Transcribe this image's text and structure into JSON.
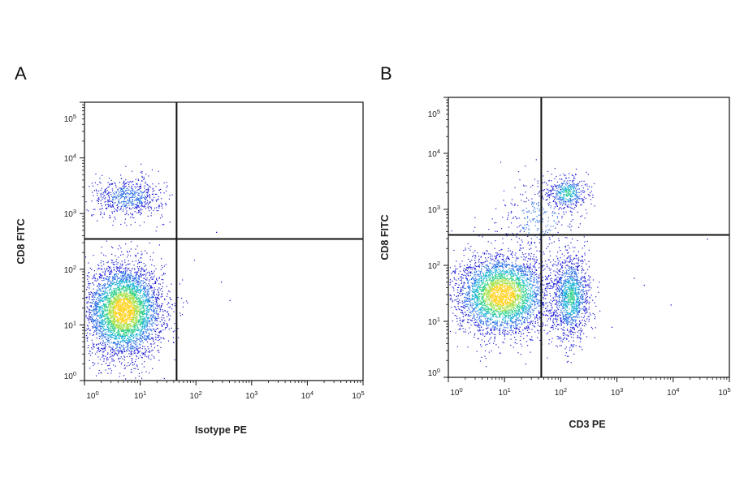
{
  "figure": {
    "panels": [
      {
        "letter": "A"
      },
      {
        "letter": "B"
      }
    ]
  },
  "chart_data": [
    {
      "type": "scatter",
      "panel": "A",
      "xlabel": "Isotype PE",
      "ylabel": "CD8 FITC",
      "xscale": "log",
      "yscale": "log",
      "xlim": [
        1,
        100000
      ],
      "ylim": [
        1,
        100000
      ],
      "x_tick_labels": [
        "10^0",
        "10^1",
        "10^2",
        "10^3",
        "10^4",
        "10^5"
      ],
      "y_tick_labels": [
        "10^0",
        "10^1",
        "10^2",
        "10^3",
        "10^4",
        "10^5"
      ],
      "quadrant_gate": {
        "x": 45,
        "y": 350
      },
      "density_colormap": [
        "#1a1ad6",
        "#2a6ee6",
        "#1fb3d6",
        "#2fd08a",
        "#a8e04a",
        "#ffd21f"
      ],
      "series": [
        {
          "gx": 5,
          "gy": 18,
          "sx": 0.35,
          "sy": 0.42,
          "count": 4200,
          "peak": "high"
        },
        {
          "gx": 6,
          "gy": 2000,
          "sx": 0.32,
          "sy": 0.18,
          "count": 650,
          "peak": "low"
        }
      ],
      "outliers": [
        [
          230,
          470
        ],
        [
          400,
          28
        ],
        [
          280,
          60
        ],
        [
          9,
          60
        ]
      ]
    },
    {
      "type": "scatter",
      "panel": "B",
      "xlabel": "CD3 PE",
      "ylabel": "CD8 FITC",
      "xscale": "log",
      "yscale": "log",
      "xlim": [
        1,
        100000
      ],
      "ylim": [
        1,
        100000
      ],
      "x_tick_labels": [
        "10^0",
        "10^1",
        "10^2",
        "10^3",
        "10^4",
        "10^5"
      ],
      "y_tick_labels": [
        "10^0",
        "10^1",
        "10^2",
        "10^3",
        "10^4",
        "10^5"
      ],
      "quadrant_gate": {
        "x": 45,
        "y": 350
      },
      "density_colormap": [
        "#1a1ad6",
        "#2a6ee6",
        "#1fb3d6",
        "#2fd08a",
        "#a8e04a",
        "#ffd21f"
      ],
      "series": [
        {
          "gx": 9,
          "gy": 30,
          "sx": 0.42,
          "sy": 0.36,
          "count": 3600,
          "peak": "high"
        },
        {
          "gx": 150,
          "gy": 28,
          "sx": 0.17,
          "sy": 0.38,
          "count": 1300,
          "peak": "mid"
        },
        {
          "gx": 130,
          "gy": 2000,
          "sx": 0.17,
          "sy": 0.15,
          "count": 420,
          "peak": "mid"
        },
        {
          "gx": 40,
          "gy": 700,
          "sx": 0.35,
          "sy": 0.35,
          "count": 300,
          "peak": "low"
        }
      ],
      "outliers": [
        [
          2000,
          60
        ],
        [
          9000,
          20
        ],
        [
          40000,
          300
        ],
        [
          800,
          8
        ],
        [
          3000,
          45
        ]
      ]
    }
  ]
}
